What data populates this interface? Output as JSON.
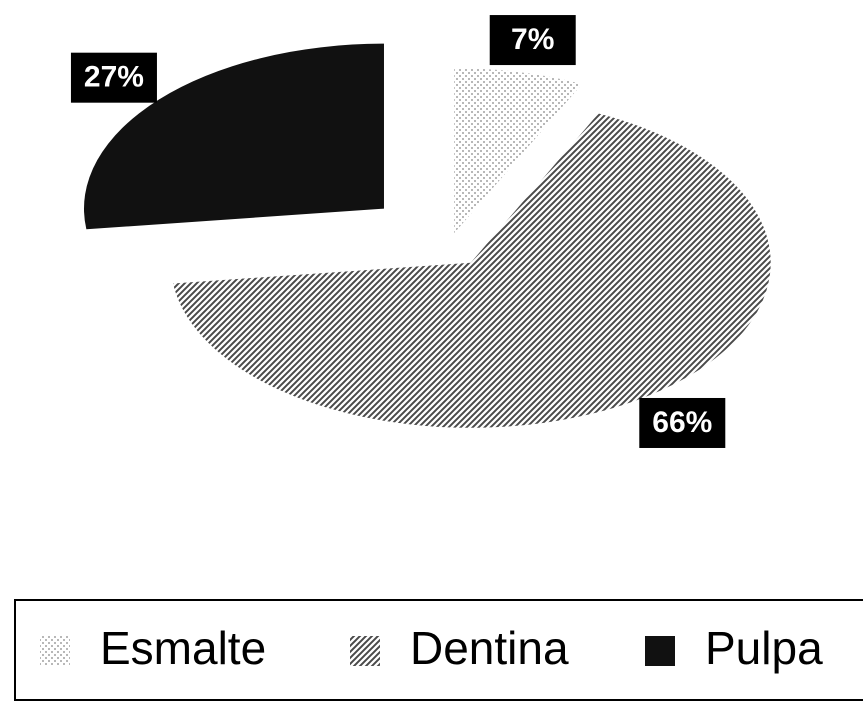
{
  "chart_data": {
    "type": "pie",
    "categories": [
      "Esmalte",
      "Dentina",
      "Pulpa"
    ],
    "values": [
      7,
      66,
      27
    ],
    "value_labels": [
      "7%",
      "66%",
      "27%"
    ],
    "colors": [
      "#b8b8b8",
      "#4a4a4a",
      "#111111"
    ],
    "patterns": [
      "dots",
      "hatch",
      "solid"
    ],
    "legend": "bottom"
  }
}
